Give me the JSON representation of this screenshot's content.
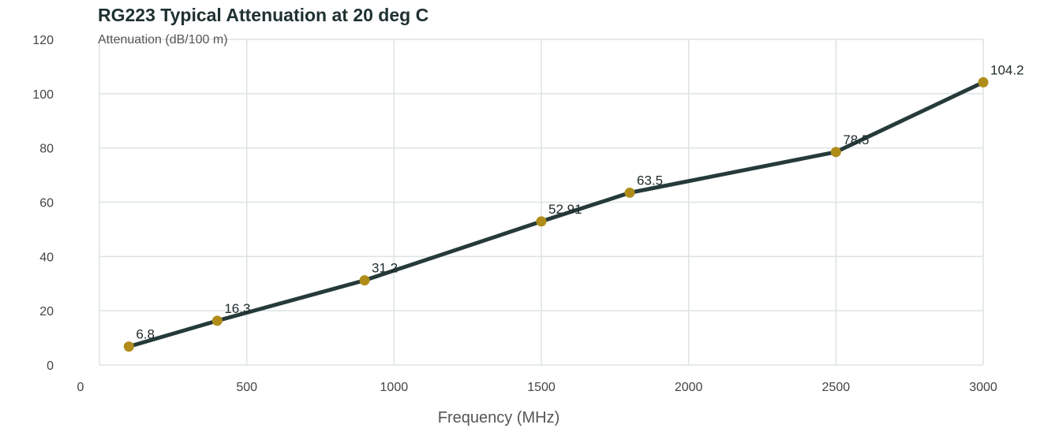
{
  "chart_data": {
    "type": "line",
    "title": "RG223 Typical Attenuation at 20 deg C",
    "ylabel": "Attenuation (dB/100 m)",
    "xlabel": "Frequency (MHz)",
    "xlim": [
      0,
      3000
    ],
    "ylim": [
      0,
      120
    ],
    "x_ticks": [
      0,
      500,
      1000,
      1500,
      2000,
      2500,
      3000
    ],
    "y_ticks": [
      0,
      20,
      40,
      60,
      80,
      100,
      120
    ],
    "grid": true,
    "series": [
      {
        "x": [
          100,
          400,
          900,
          1500,
          1800,
          2500,
          3000
        ],
        "y": [
          6.8,
          16.3,
          31.2,
          52.91,
          63.5,
          78.5,
          104.2
        ],
        "labels": [
          "6.8",
          "16.3",
          "31.2",
          "52.91",
          "63.5",
          "78.5",
          "104.2"
        ]
      }
    ]
  },
  "colors": {
    "line": "#263a3a",
    "marker": "#b08d1a",
    "grid": "#dde3e3",
    "title": "#1f3030"
  }
}
